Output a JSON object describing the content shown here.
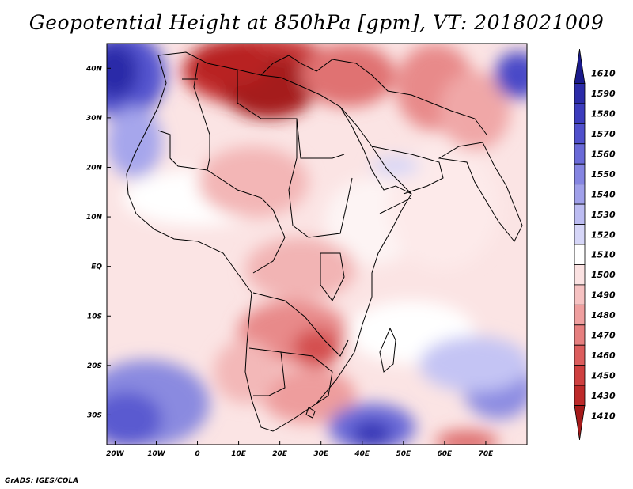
{
  "map": {
    "title": "Geopotential Height at 850hPa [gpm], VT: 2018021009",
    "credit": "GrADS: IGES/COLA",
    "region": "Africa and surrounding oceans",
    "lat_ticks": [
      "40N",
      "30N",
      "20N",
      "10N",
      "EQ",
      "10S",
      "20S",
      "30S"
    ],
    "lon_ticks": [
      "20W",
      "10W",
      "0",
      "10E",
      "20E",
      "30E",
      "40E",
      "50E",
      "60E",
      "70E"
    ],
    "lat_values": [
      40,
      30,
      20,
      10,
      0,
      -10,
      -20,
      -30
    ],
    "lon_values": [
      -20,
      -10,
      0,
      10,
      20,
      30,
      40,
      50,
      60,
      70
    ],
    "extent": {
      "lon_min": -22,
      "lon_max": 80,
      "lat_min": -36,
      "lat_max": 45
    }
  },
  "colorbar": {
    "labels": [
      "1610",
      "1590",
      "1580",
      "1570",
      "1560",
      "1550",
      "1540",
      "1530",
      "1520",
      "1510",
      "1500",
      "1490",
      "1480",
      "1470",
      "1460",
      "1450",
      "1430",
      "1410"
    ],
    "colors": [
      "#1a1a8c",
      "#2b2ba8",
      "#3c3cbd",
      "#5050cc",
      "#6a6ad8",
      "#8585e2",
      "#a0a0ea",
      "#bcbcf2",
      "#d6d6f8",
      "#ffffff",
      "#fbe2e2",
      "#f6c2c2",
      "#ef9f9f",
      "#e67f7f",
      "#dc5d5d",
      "#cf4040",
      "#bd2a2a",
      "#a51a1a"
    ]
  }
}
